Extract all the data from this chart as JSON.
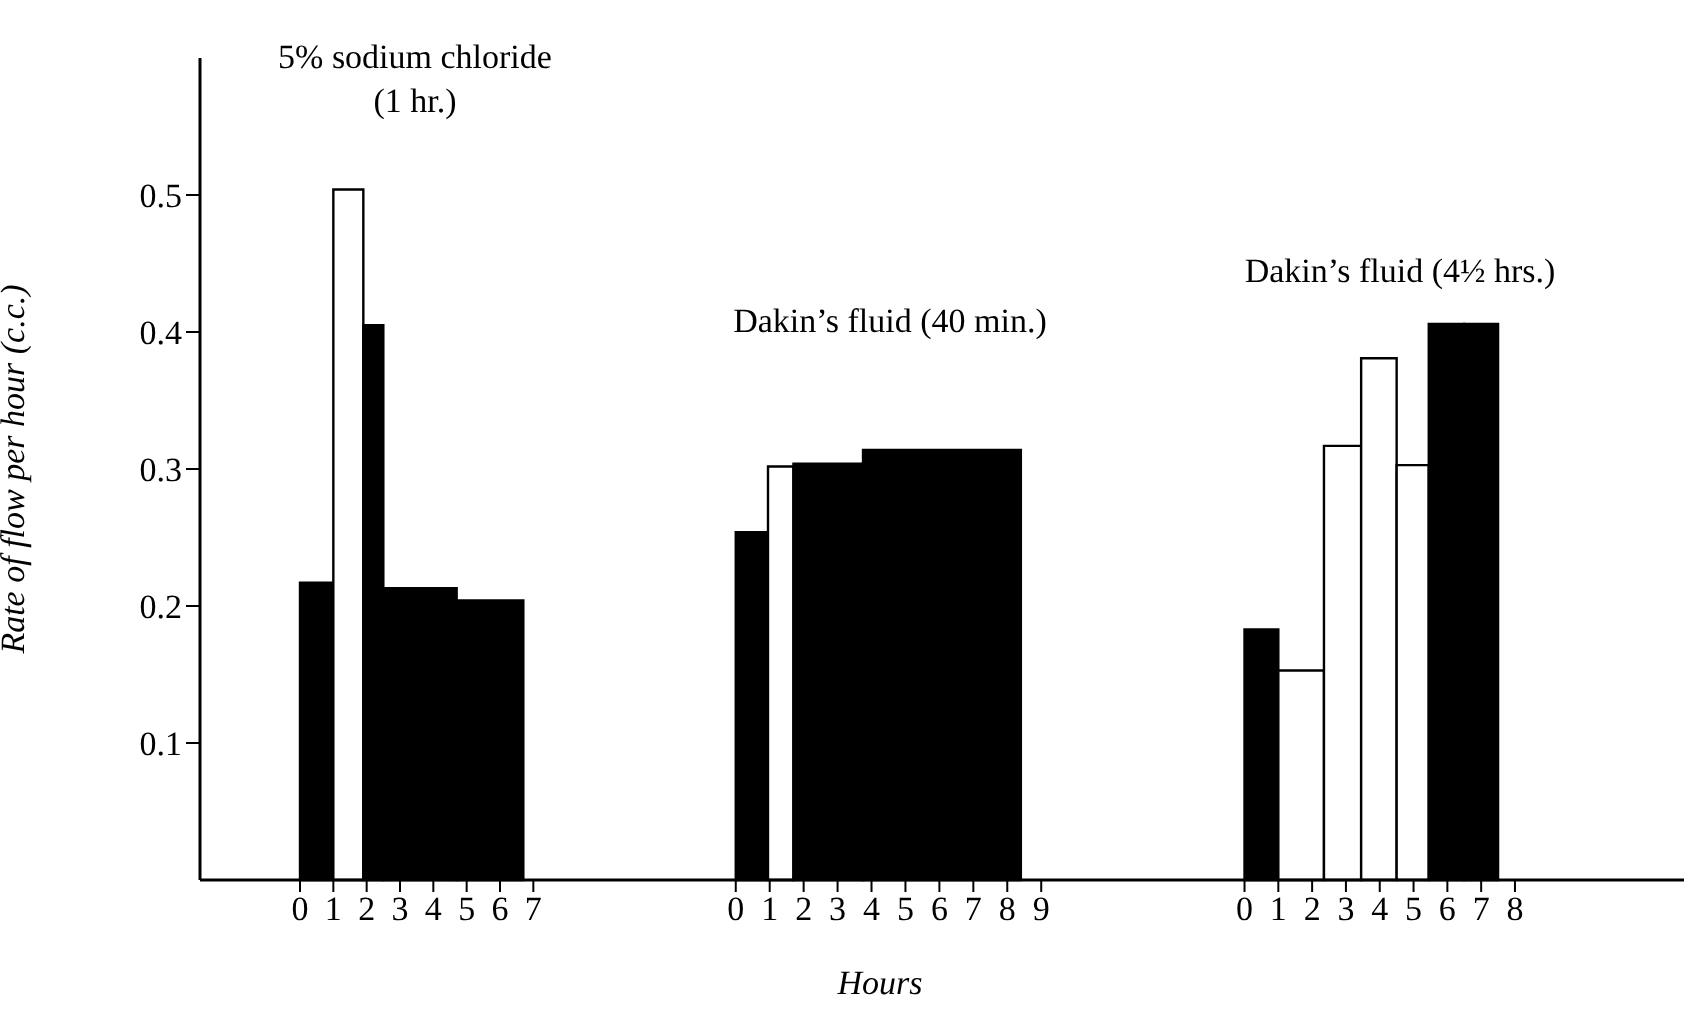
{
  "chart_data": [
    {
      "type": "histogram",
      "ylabel": "Rate of flow per hour (c.c.)",
      "annotations": [
        "5% sodium chloride (1 hr.)"
      ],
      "bins": [
        0,
        1,
        1.9,
        2.5,
        4.7,
        6.7
      ],
      "values": [
        0.217,
        0.504,
        0.405,
        0.213,
        0.204
      ],
      "colors": [
        "#000000",
        "#ffffff",
        "#000000",
        "#000000",
        "#000000"
      ],
      "xlim": [
        -3,
        9
      ],
      "xticks": [
        0,
        1,
        2,
        3,
        4,
        5,
        6,
        7
      ],
      "ylim": [
        0,
        0.6
      ],
      "yticks": [
        0.1,
        0.2,
        0.3,
        0.4,
        0.5
      ],
      "grid": false
    },
    {
      "type": "histogram",
      "xlabel": "Hours",
      "annotations": [
        "Dakin’s fluid (40 min.)"
      ],
      "bins": [
        0,
        0.95,
        1.7,
        3.75,
        8.4
      ],
      "values": [
        0.254,
        0.302,
        0.304,
        0.314
      ],
      "colors": [
        "#000000",
        "#ffffff",
        "#000000",
        "#000000"
      ],
      "xlim": [
        -4,
        12.5
      ],
      "xticks": [
        0,
        1,
        2,
        3,
        4,
        5,
        6,
        7,
        8,
        9
      ],
      "ylim": [
        0,
        0.5
      ],
      "yticks": [
        0.1,
        0.2,
        0.3,
        0.4,
        0.5
      ],
      "tick_labels": "x",
      "grid": false
    },
    {
      "type": "histogram",
      "annotations": [
        "Dakin’s fluid (4½ hrs.)"
      ],
      "bins": [
        0,
        1,
        2.35,
        3.45,
        4.5,
        5.45,
        6.5,
        7.5
      ],
      "values": [
        0.183,
        0.153,
        0.317,
        0.381,
        0.303,
        0.406,
        0.406
      ],
      "colors": [
        "#000000",
        "#ffffff",
        "#ffffff",
        "#ffffff",
        "#ffffff",
        "#000000",
        "#000000"
      ],
      "xlim": [
        -2.5,
        13
      ],
      "xticks": [
        0,
        1,
        2,
        3,
        4,
        5,
        6,
        7,
        8
      ],
      "ylim": [
        0,
        0.5
      ],
      "yticks": [
        0.1,
        0.2,
        0.3,
        0.4,
        0.5
      ],
      "tick_labels": "x",
      "grid": false
    }
  ]
}
